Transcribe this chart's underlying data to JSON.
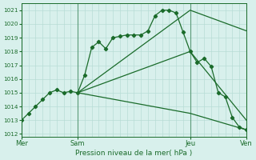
{
  "title": "Pression niveau de la mer( hPa )",
  "ylabel_ticks": [
    1012,
    1013,
    1014,
    1015,
    1016,
    1017,
    1018,
    1019,
    1020,
    1021
  ],
  "ylim": [
    1011.8,
    1021.5
  ],
  "xlim": [
    0,
    96
  ],
  "day_ticks": [
    0,
    24,
    72,
    96
  ],
  "day_labels": [
    "Mer",
    "Sam",
    "Jeu",
    "Ven"
  ],
  "vline_positions": [
    0,
    24,
    72,
    96
  ],
  "bg_color": "#d8f0ec",
  "grid_color": "#b8dcd6",
  "line_color": "#1a6b2a",
  "series1_x": [
    0,
    3,
    6,
    9,
    12,
    15,
    18,
    21,
    24,
    27,
    30,
    33,
    36,
    39,
    42,
    45,
    48,
    51,
    54,
    57,
    60,
    63,
    66,
    69,
    72,
    75,
    78,
    81,
    84,
    87,
    90,
    93,
    96
  ],
  "series1_y": [
    1013.0,
    1013.5,
    1014.0,
    1014.5,
    1015.0,
    1015.2,
    1015.0,
    1015.1,
    1015.0,
    1016.3,
    1018.3,
    1018.7,
    1018.2,
    1019.0,
    1019.1,
    1019.2,
    1019.2,
    1019.2,
    1019.5,
    1020.6,
    1021.0,
    1021.0,
    1020.8,
    1019.4,
    1018.0,
    1017.2,
    1017.5,
    1016.9,
    1015.0,
    1014.7,
    1013.2,
    1012.5,
    1012.3
  ],
  "series2_x": [
    24,
    72,
    96
  ],
  "series2_y": [
    1015.0,
    1021.0,
    1019.5
  ],
  "series3_x": [
    24,
    72,
    96
  ],
  "series3_y": [
    1015.0,
    1018.0,
    1013.0
  ],
  "series4_x": [
    24,
    72,
    96
  ],
  "series4_y": [
    1015.0,
    1013.5,
    1012.3
  ]
}
